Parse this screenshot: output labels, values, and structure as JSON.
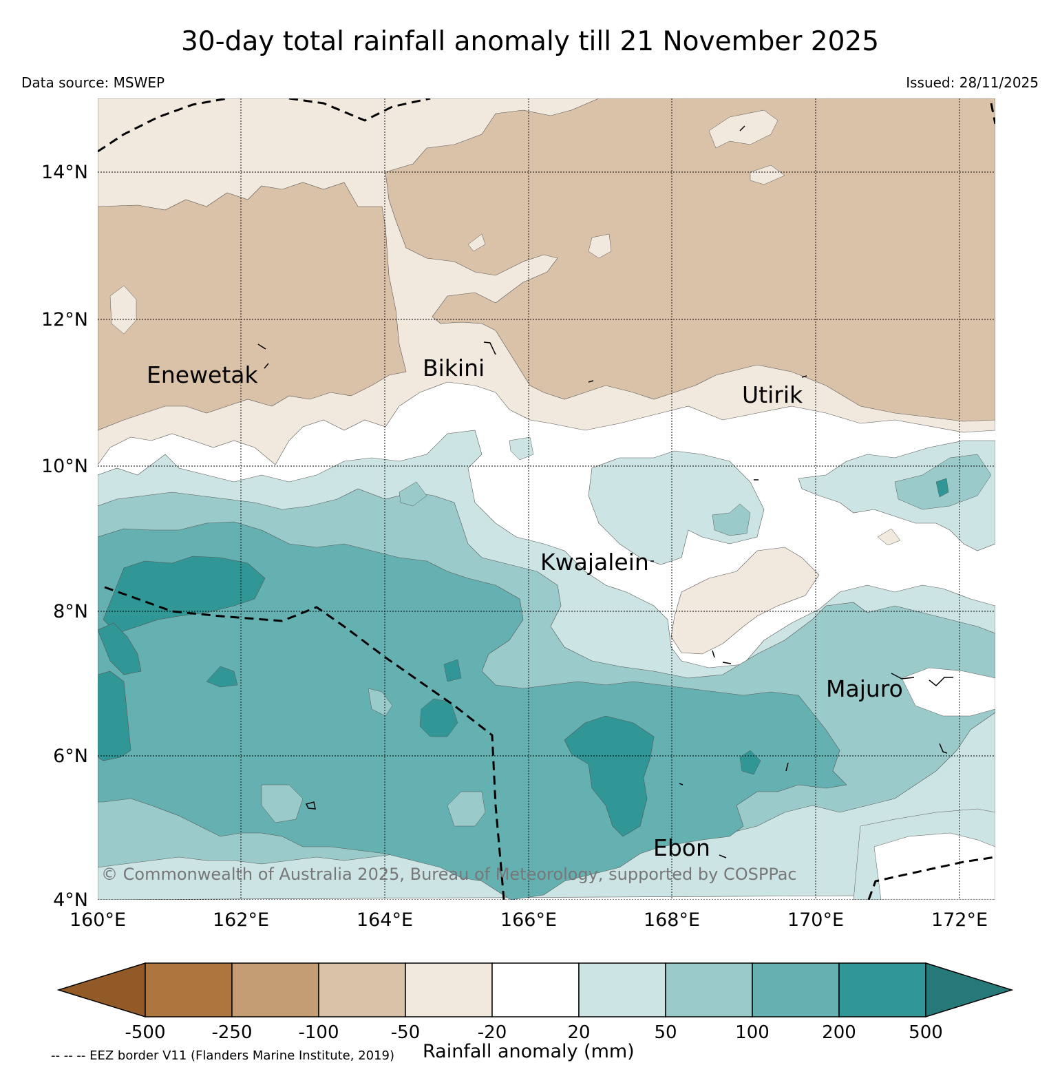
{
  "header": {
    "title": "30-day total rainfall anomaly till 21 November 2025",
    "data_source": "Data source: MSWEP",
    "issued": "Issued: 28/11/2025"
  },
  "map": {
    "lat_ticks": [
      "14°N",
      "12°N",
      "10°N",
      "8°N",
      "6°N",
      "4°N"
    ],
    "lon_ticks": [
      "160°E",
      "162°E",
      "164°E",
      "166°E",
      "168°E",
      "170°E",
      "172°E"
    ],
    "places": {
      "enewetak": "Enewetak",
      "bikini": "Bikini",
      "utirik": "Utirik",
      "kwajalein": "Kwajalein",
      "majuro": "Majuro",
      "ebon": "Ebon"
    },
    "copyright": "© Commonwealth of Australia 2025, Bureau of Meteorology, supported by COSPPac"
  },
  "colorbar": {
    "labels": [
      "-500",
      "-250",
      "-100",
      "-50",
      "-20",
      "20",
      "50",
      "100",
      "200",
      "500"
    ],
    "colors": [
      "#915a27",
      "#ae763f",
      "#c49d75",
      "#dac2a8",
      "#f1e8de",
      "#ffffff",
      "#cce5e4",
      "#9acaca",
      "#65b0b1",
      "#319796",
      "#267978"
    ],
    "title": "Rainfall anomaly (mm)"
  },
  "legend": {
    "eez_note": "-- -- -- EEZ border V11 (Flanders Marine Institute, 2019)"
  }
}
